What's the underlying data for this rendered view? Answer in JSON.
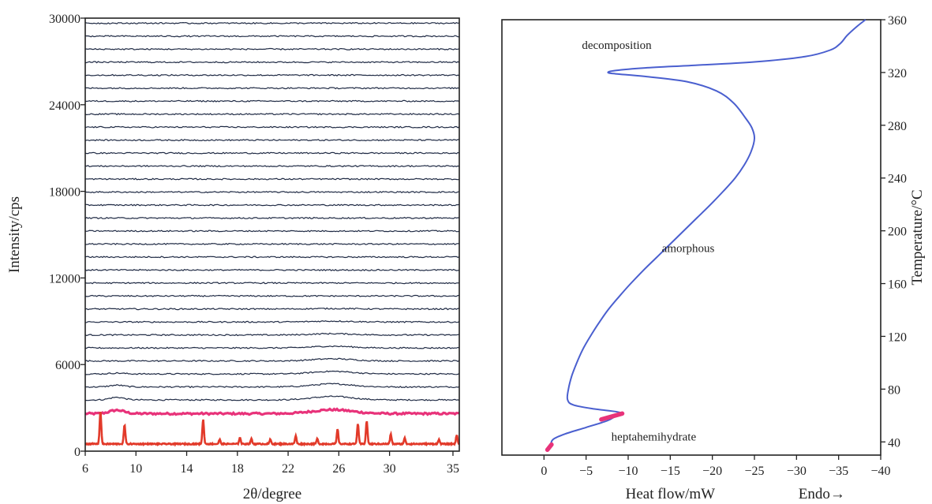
{
  "chart_data": [
    {
      "type": "line",
      "title": "",
      "xlabel": "2θ/degree",
      "ylabel": "Intensity/cps",
      "xlim": [
        6,
        35.5
      ],
      "ylim": [
        0,
        30000
      ],
      "x_ticks": [
        "6",
        "10",
        "14",
        "18",
        "22",
        "26",
        "30",
        "35"
      ],
      "x_tick_values": [
        6,
        10,
        14,
        18,
        22,
        26,
        30,
        35
      ],
      "y_ticks": [
        "0",
        "6000",
        "12000",
        "18000",
        "24000",
        "30000"
      ],
      "y_tick_values": [
        0,
        6000,
        12000,
        18000,
        24000,
        30000
      ],
      "grid": false,
      "trace_baselines": [
        2600,
        3550,
        4450,
        5350,
        6250,
        7150,
        8050,
        8950,
        9850,
        10750,
        11650,
        12550,
        13450,
        14350,
        15250,
        16150,
        17050,
        17950,
        18850,
        19750,
        20650,
        21550,
        22450,
        23350,
        24250,
        25150,
        26050,
        26950,
        27850,
        28750,
        29650
      ],
      "pink_trace": {
        "baseline": 2600,
        "color": "#e8337a"
      },
      "crystalline_trace": {
        "baseline": 500,
        "color": "#e23a2a",
        "peaks": [
          {
            "x": 7.2,
            "height": 2300
          },
          {
            "x": 9.1,
            "height": 1300
          },
          {
            "x": 15.3,
            "height": 1700
          },
          {
            "x": 16.6,
            "height": 300
          },
          {
            "x": 18.2,
            "height": 450
          },
          {
            "x": 19.1,
            "height": 350
          },
          {
            "x": 20.6,
            "height": 300
          },
          {
            "x": 22.6,
            "height": 550
          },
          {
            "x": 24.3,
            "height": 350
          },
          {
            "x": 25.9,
            "height": 1000
          },
          {
            "x": 27.5,
            "height": 1400
          },
          {
            "x": 28.2,
            "height": 1600
          },
          {
            "x": 30.1,
            "height": 650
          },
          {
            "x": 31.2,
            "height": 400
          },
          {
            "x": 33.9,
            "height": 300
          },
          {
            "x": 35.3,
            "height": 600
          }
        ]
      },
      "trace_color": "#1f2a44"
    },
    {
      "type": "line",
      "title": "",
      "xlabel": "Heat flow/mW",
      "xlabel2": "Endo→",
      "ylabel": "Temperature/°C",
      "xlim": [
        5,
        -40
      ],
      "ylim": [
        30,
        360
      ],
      "x_ticks": [
        "0",
        "−5",
        "−10",
        "−15",
        "−20",
        "−25",
        "−30",
        "−35",
        "−40"
      ],
      "x_tick_values": [
        0,
        -5,
        -10,
        -15,
        -20,
        -25,
        -30,
        -35,
        -40
      ],
      "y_ticks": [
        "40",
        "80",
        "120",
        "160",
        "200",
        "240",
        "280",
        "320",
        "360"
      ],
      "y_tick_values": [
        40,
        80,
        120,
        160,
        200,
        240,
        280,
        320,
        360
      ],
      "grid": false,
      "annotations": [
        {
          "text": "decomposition",
          "x": -4.5,
          "y": 338
        },
        {
          "text": "amorphous",
          "x": -14,
          "y": 184
        },
        {
          "text": "heptahemihydrate",
          "x": -8,
          "y": 41
        }
      ],
      "curve": {
        "color": "#4a5fcf",
        "points": [
          [
            0.6,
            34
          ],
          [
            0.8,
            38
          ],
          [
            1.1,
            42
          ],
          [
            2.5,
            46
          ],
          [
            5.0,
            51
          ],
          [
            7.5,
            56
          ],
          [
            8.5,
            59.5
          ],
          [
            9.2,
            61.5
          ],
          [
            8.5,
            63
          ],
          [
            6.0,
            65
          ],
          [
            3.5,
            68
          ],
          [
            2.8,
            72
          ],
          [
            2.9,
            80
          ],
          [
            3.3,
            90
          ],
          [
            3.9,
            100
          ],
          [
            4.6,
            110
          ],
          [
            5.5,
            120
          ],
          [
            6.5,
            130
          ],
          [
            7.6,
            140
          ],
          [
            8.9,
            150
          ],
          [
            10.3,
            160
          ],
          [
            11.8,
            170
          ],
          [
            13.4,
            180
          ],
          [
            15.0,
            190
          ],
          [
            16.6,
            200
          ],
          [
            18.2,
            210
          ],
          [
            19.8,
            220
          ],
          [
            21.3,
            230
          ],
          [
            22.7,
            240
          ],
          [
            23.8,
            250
          ],
          [
            24.6,
            260
          ],
          [
            25.0,
            270
          ],
          [
            24.7,
            278
          ],
          [
            24.0,
            285
          ],
          [
            22.5,
            297
          ],
          [
            20.5,
            306
          ],
          [
            17.0,
            313
          ],
          [
            12.0,
            317
          ],
          [
            8.5,
            319
          ],
          [
            7.6,
            320
          ],
          [
            8.5,
            321.5
          ],
          [
            12.0,
            323.5
          ],
          [
            18.0,
            325.5
          ],
          [
            25.0,
            328
          ],
          [
            31.0,
            332
          ],
          [
            34.0,
            337
          ],
          [
            35.2,
            342
          ],
          [
            36.0,
            348
          ],
          [
            37.2,
            355
          ],
          [
            38.2,
            360
          ]
        ],
        "highlight_color": "#e8337a",
        "highlight_segments": [
          [
            [
              0.4,
              34
            ],
            [
              0.9,
              38
            ]
          ],
          [
            [
              6.8,
              57
            ],
            [
              9.3,
              61.5
            ]
          ]
        ]
      }
    }
  ]
}
